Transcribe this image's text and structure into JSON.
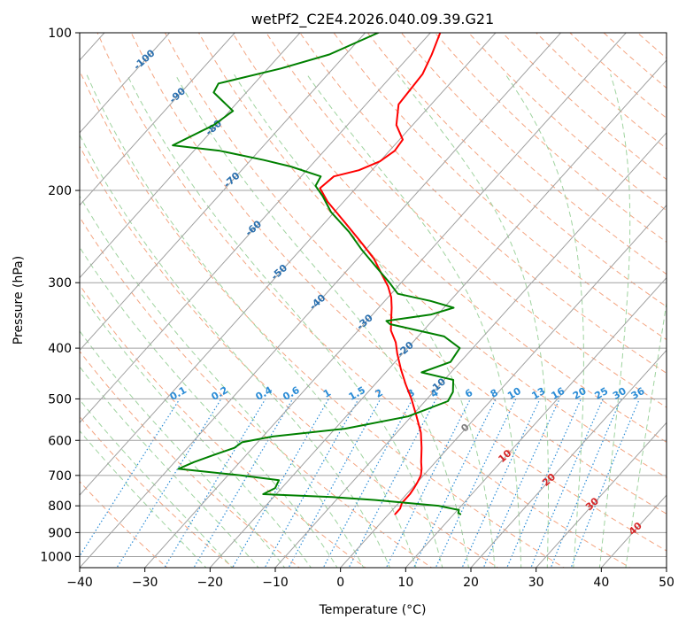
{
  "chart_data": {
    "type": "line",
    "title": "wetPf2_C2E4.2026.040.09.39.G21",
    "xlabel": "Temperature (°C)",
    "ylabel": "Pressure (hPa)",
    "xlim": [
      -40,
      50
    ],
    "ylim": [
      1050,
      100
    ],
    "y_scale": "log",
    "skew": true,
    "x_ticks": [
      -40,
      -30,
      -20,
      -10,
      0,
      10,
      20,
      30,
      40,
      50
    ],
    "x_tick_labels": [
      "−40",
      "−30",
      "−20",
      "−10",
      "0",
      "10",
      "20",
      "30",
      "40",
      "50"
    ],
    "y_ticks": [
      100,
      200,
      300,
      400,
      500,
      600,
      700,
      800,
      900,
      1000
    ],
    "y_tick_labels": [
      "100",
      "200",
      "300",
      "400",
      "500",
      "600",
      "700",
      "800",
      "900",
      "1000"
    ],
    "grid": true,
    "colors": {
      "temperature": "#ff0000",
      "dewpoint": "#008000",
      "isotherm": "#a0a0a0",
      "dry_adiabat": "#f4a582",
      "moist_adiabat": "#9fd39f",
      "mixing_ratio": "#2b8cd6",
      "isotherm_label_blue": "#2a6fae",
      "isotherm_label_red": "#d62728",
      "isotherm_label_gray": "#808080"
    },
    "series": [
      {
        "key": "temperature",
        "points": [
          [
            1.0,
            830
          ],
          [
            1.0,
            810
          ],
          [
            0.5,
            790
          ],
          [
            0.5,
            760
          ],
          [
            0.3,
            740
          ],
          [
            0.0,
            720
          ],
          [
            -0.4,
            700
          ],
          [
            -1.2,
            680
          ],
          [
            -2.2,
            660
          ],
          [
            -4.1,
            620
          ],
          [
            -6.3,
            580
          ],
          [
            -9.2,
            540
          ],
          [
            -12.4,
            500
          ],
          [
            -15.2,
            470
          ],
          [
            -18.0,
            440
          ],
          [
            -20.8,
            410
          ],
          [
            -22.6,
            390
          ],
          [
            -25.0,
            370
          ],
          [
            -26.7,
            350
          ],
          [
            -28.0,
            335
          ],
          [
            -29.5,
            320
          ],
          [
            -31.5,
            305
          ],
          [
            -34.0,
            290
          ],
          [
            -37.5,
            270
          ],
          [
            -42.0,
            250
          ],
          [
            -47.0,
            230
          ],
          [
            -52.5,
            210
          ],
          [
            -55.5,
            198
          ],
          [
            -55.0,
            188
          ],
          [
            -52.0,
            183
          ],
          [
            -50.0,
            176
          ],
          [
            -49.2,
            168
          ],
          [
            -49.5,
            160
          ],
          [
            -52.5,
            150
          ],
          [
            -55.0,
            137
          ],
          [
            -55.5,
            120
          ],
          [
            -56.8,
            110
          ],
          [
            -58.5,
            100
          ]
        ]
      },
      {
        "key": "dewpoint",
        "points": [
          [
            11.0,
            830
          ],
          [
            10.5,
            825
          ],
          [
            10.2,
            815
          ],
          [
            6.5,
            800
          ],
          [
            -4.0,
            780
          ],
          [
            -11.0,
            770
          ],
          [
            -22.0,
            760
          ],
          [
            -21.0,
            740
          ],
          [
            -21.5,
            715
          ],
          [
            -28.0,
            700
          ],
          [
            -38.5,
            680
          ],
          [
            -37.0,
            660
          ],
          [
            -35.0,
            640
          ],
          [
            -32.8,
            620
          ],
          [
            -32.4,
            605
          ],
          [
            -28.5,
            590
          ],
          [
            -18.5,
            570
          ],
          [
            -10.5,
            540
          ],
          [
            -6.5,
            505
          ],
          [
            -7.0,
            485
          ],
          [
            -8.6,
            460
          ],
          [
            -14.5,
            445
          ],
          [
            -11.5,
            425
          ],
          [
            -12.0,
            400
          ],
          [
            -16.0,
            380
          ],
          [
            -26.0,
            360
          ],
          [
            -27.0,
            355
          ],
          [
            -21.0,
            345
          ],
          [
            -18.5,
            335
          ],
          [
            -23.0,
            325
          ],
          [
            -29.0,
            315
          ],
          [
            -31.8,
            300
          ],
          [
            -36.0,
            280
          ],
          [
            -40.5,
            260
          ],
          [
            -45.0,
            240
          ],
          [
            -50.5,
            220
          ],
          [
            -54.0,
            205
          ],
          [
            -56.5,
            196
          ],
          [
            -57.0,
            188
          ],
          [
            -63.0,
            180
          ],
          [
            -68.0,
            175
          ],
          [
            -76.0,
            168
          ],
          [
            -84.0,
            164
          ],
          [
            -80.5,
            150
          ],
          [
            -79.5,
            141
          ],
          [
            -85.0,
            130
          ],
          [
            -85.5,
            125
          ],
          [
            -78.0,
            117
          ],
          [
            -72.5,
            110
          ],
          [
            -68.0,
            100
          ]
        ]
      }
    ],
    "isotherm_labels": [
      "-100",
      "-90",
      "-80",
      "-70",
      "-60",
      "-50",
      "-40",
      "-30",
      "-20",
      "-10",
      "0",
      "10",
      "20",
      "30",
      "40"
    ],
    "mixing_ratio_labels": [
      "0.1",
      "0.2",
      "0.4",
      "0.6",
      "1",
      "1.5",
      "2",
      "3",
      "4",
      "6",
      "8",
      "10",
      "13",
      "16",
      "20",
      "25",
      "30",
      "36"
    ],
    "mixing_ratio_values": [
      0.1,
      0.2,
      0.4,
      0.6,
      1,
      1.5,
      2,
      3,
      4,
      6,
      8,
      10,
      13,
      16,
      20,
      25,
      30,
      36
    ]
  }
}
